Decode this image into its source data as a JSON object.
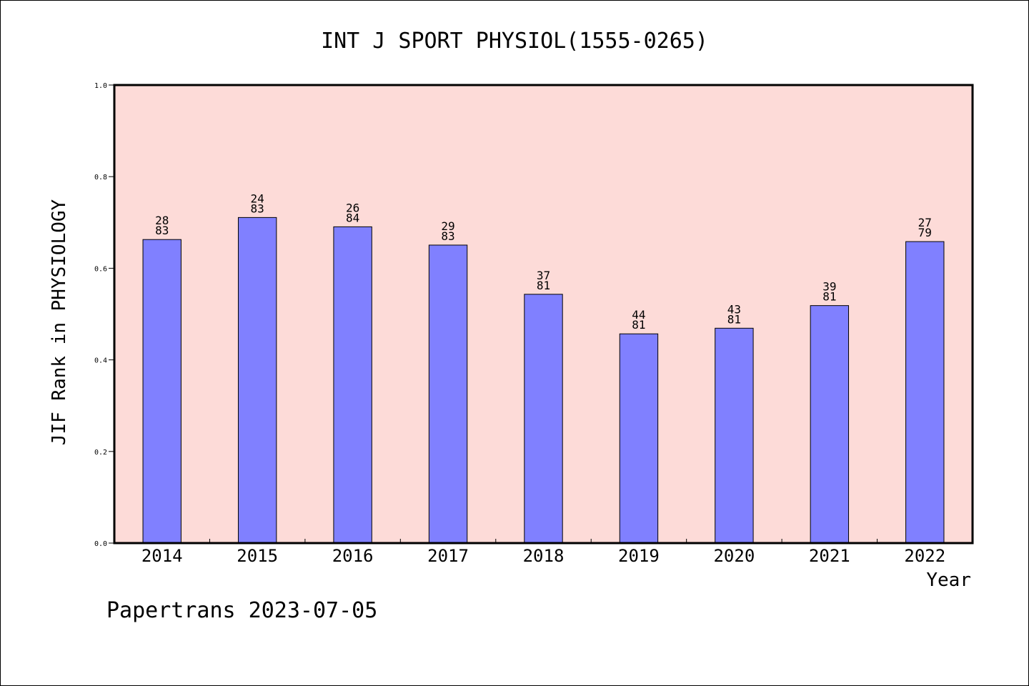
{
  "chart_data": {
    "type": "bar",
    "title": "INT J SPORT PHYSIOL(1555-0265)",
    "xlabel": "Year",
    "ylabel": "JIF Rank in PHYSIOLOGY",
    "ylim": [
      0,
      1.0
    ],
    "yticks": [
      "0.0",
      "0.2",
      "0.4",
      "0.6",
      "0.8",
      "1.0"
    ],
    "grid": false,
    "legend": "none",
    "categories": [
      "2014",
      "2015",
      "2016",
      "2017",
      "2018",
      "2019",
      "2020",
      "2021",
      "2022"
    ],
    "values": [
      0.6627,
      0.7108,
      0.6905,
      0.6506,
      0.5432,
      0.4568,
      0.4691,
      0.5185,
      0.6582
    ],
    "labels_top": [
      "28",
      "24",
      "26",
      "29",
      "37",
      "44",
      "43",
      "39",
      "27"
    ],
    "labels_bottom": [
      "83",
      "83",
      "84",
      "83",
      "81",
      "81",
      "81",
      "81",
      "79"
    ],
    "colors": {
      "plot_bg": "#fddbd8",
      "bar": "#8080ff",
      "bar_edge": "#000000"
    }
  },
  "footer": {
    "credit": "Papertrans 2023-07-05"
  }
}
